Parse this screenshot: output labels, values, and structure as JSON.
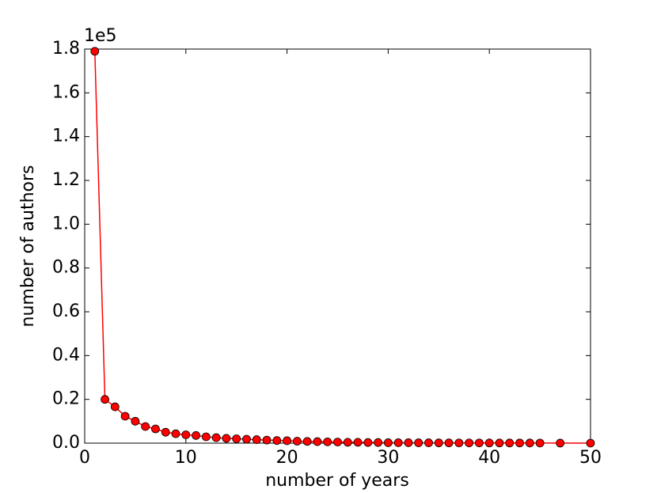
{
  "chart_data": {
    "type": "line",
    "x_label": "number of years",
    "y_label": "number of authors",
    "y_offset_label": "1e5",
    "x": [
      1,
      2,
      3,
      4,
      5,
      6,
      7,
      8,
      9,
      10,
      11,
      12,
      13,
      14,
      15,
      16,
      17,
      18,
      19,
      20,
      21,
      22,
      23,
      24,
      25,
      26,
      27,
      28,
      29,
      30,
      31,
      32,
      33,
      34,
      35,
      36,
      37,
      38,
      39,
      40,
      41,
      42,
      43,
      44,
      45,
      47,
      50
    ],
    "series": [
      {
        "color": "#ff0000",
        "marker_edge": "#000000",
        "values": [
          1.79,
          0.2,
          0.166,
          0.123,
          0.1,
          0.076,
          0.065,
          0.05,
          0.043,
          0.038,
          0.035,
          0.029,
          0.025,
          0.022,
          0.02,
          0.018,
          0.016,
          0.014,
          0.012,
          0.011,
          0.009,
          0.008,
          0.007,
          0.006,
          0.005,
          0.004,
          0.004,
          0.003,
          0.003,
          0.002,
          0.002,
          0.002,
          0.0015,
          0.0015,
          0.0012,
          0.0012,
          0.001,
          0.001,
          0.001,
          0.0008,
          0.0008,
          0.0007,
          0.0006,
          0.0006,
          0.0005,
          0.0003,
          0.0001
        ]
      }
    ],
    "xlim": [
      0,
      50
    ],
    "xticks": [
      0,
      10,
      20,
      30,
      40,
      50
    ],
    "ylim": [
      0,
      1.8
    ],
    "yticks": [
      {
        "value": 0,
        "label": "0.0"
      },
      0.2,
      0.4,
      0.6,
      0.8,
      {
        "value": 1,
        "label": "1.0"
      },
      1.2,
      1.4,
      1.6,
      1.8
    ],
    "grid": false
  }
}
